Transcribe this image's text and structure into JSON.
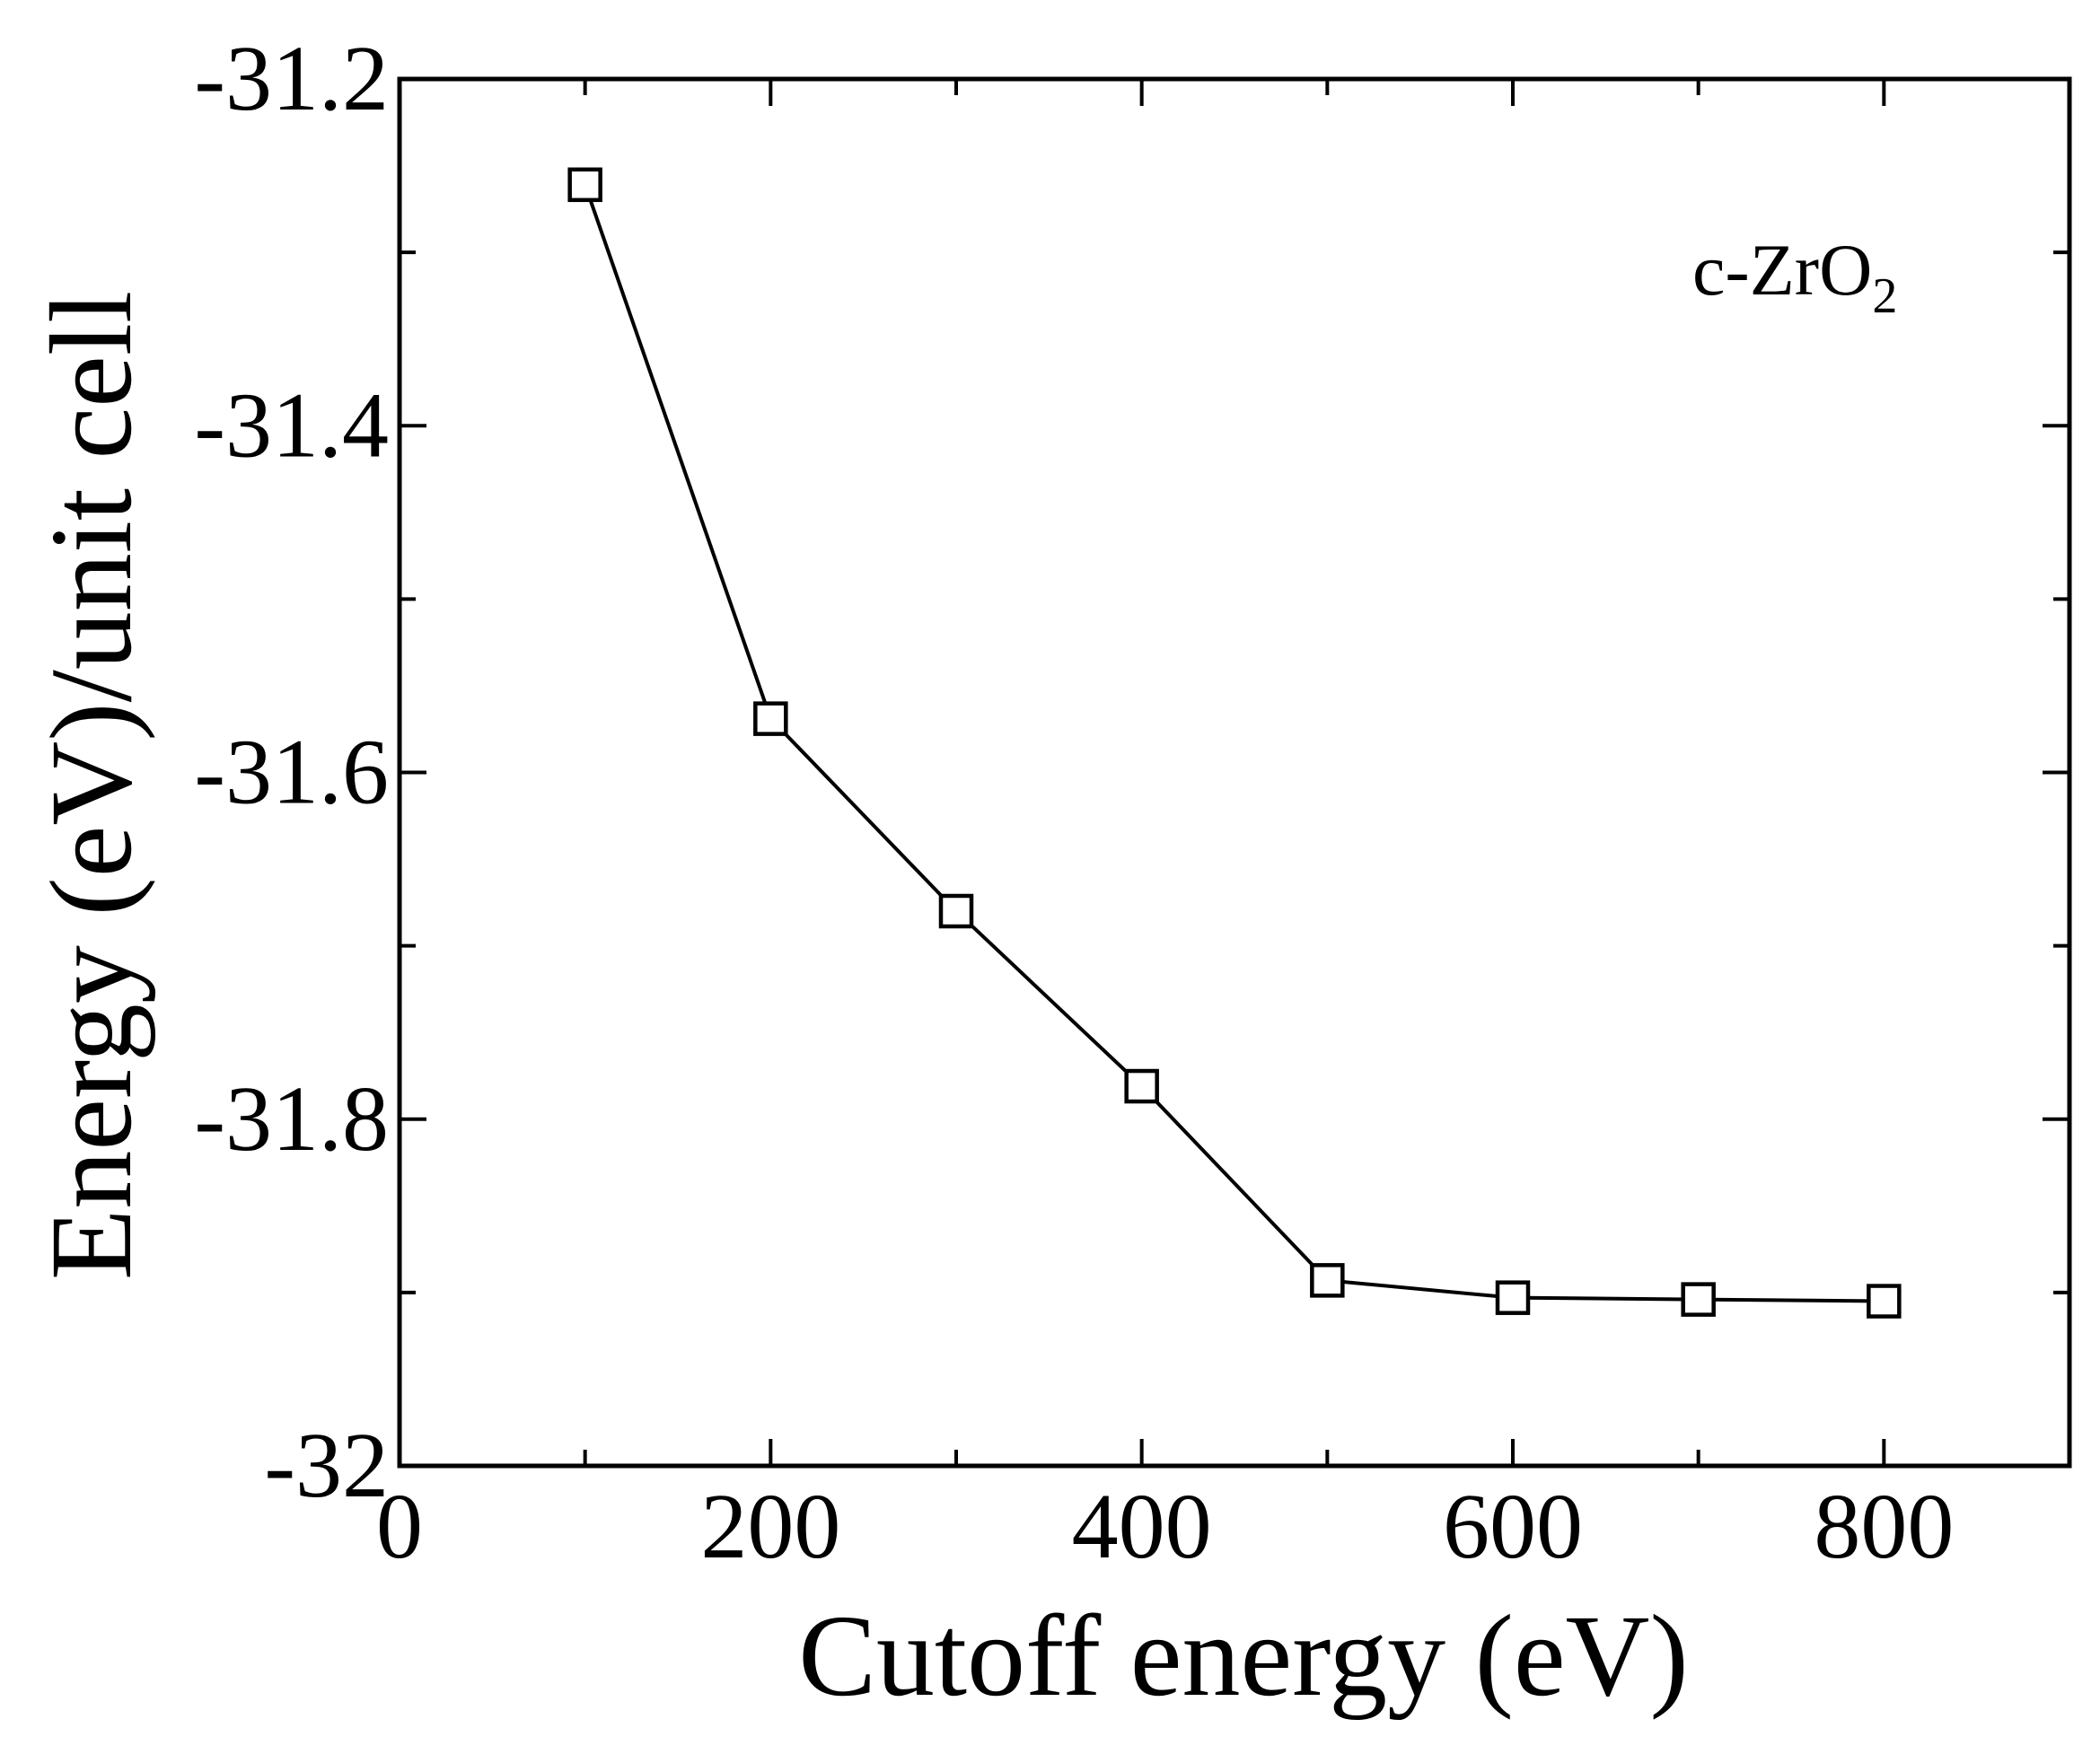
{
  "chart_data": {
    "type": "line",
    "title": "",
    "xlabel": "Cutoff energy (eV)",
    "ylabel": "Energy (eV)/unit cell",
    "xlim": [
      0,
      900
    ],
    "ylim": [
      -32,
      -31.2
    ],
    "xticks": [
      0,
      200,
      400,
      600,
      800
    ],
    "xtick_labels": [
      "0",
      "200",
      "400",
      "600",
      "800"
    ],
    "yticks": [
      -32,
      -31.8,
      -31.6,
      -31.4,
      -31.2
    ],
    "ytick_labels": [
      "-32",
      "-31.8",
      "-31.6",
      "-31.4",
      "-31.2"
    ],
    "grid": false,
    "legend": "none",
    "annotation": {
      "text": "c-ZrO",
      "subscript": "2"
    },
    "series": [
      {
        "marker": "open-square",
        "color": "#000000",
        "x": [
          100,
          200,
          300,
          400,
          500,
          600,
          700,
          800
        ],
        "y": [
          -31.261,
          -31.569,
          -31.68,
          -31.781,
          -31.893,
          -31.903,
          -31.904,
          -31.905
        ]
      }
    ]
  }
}
